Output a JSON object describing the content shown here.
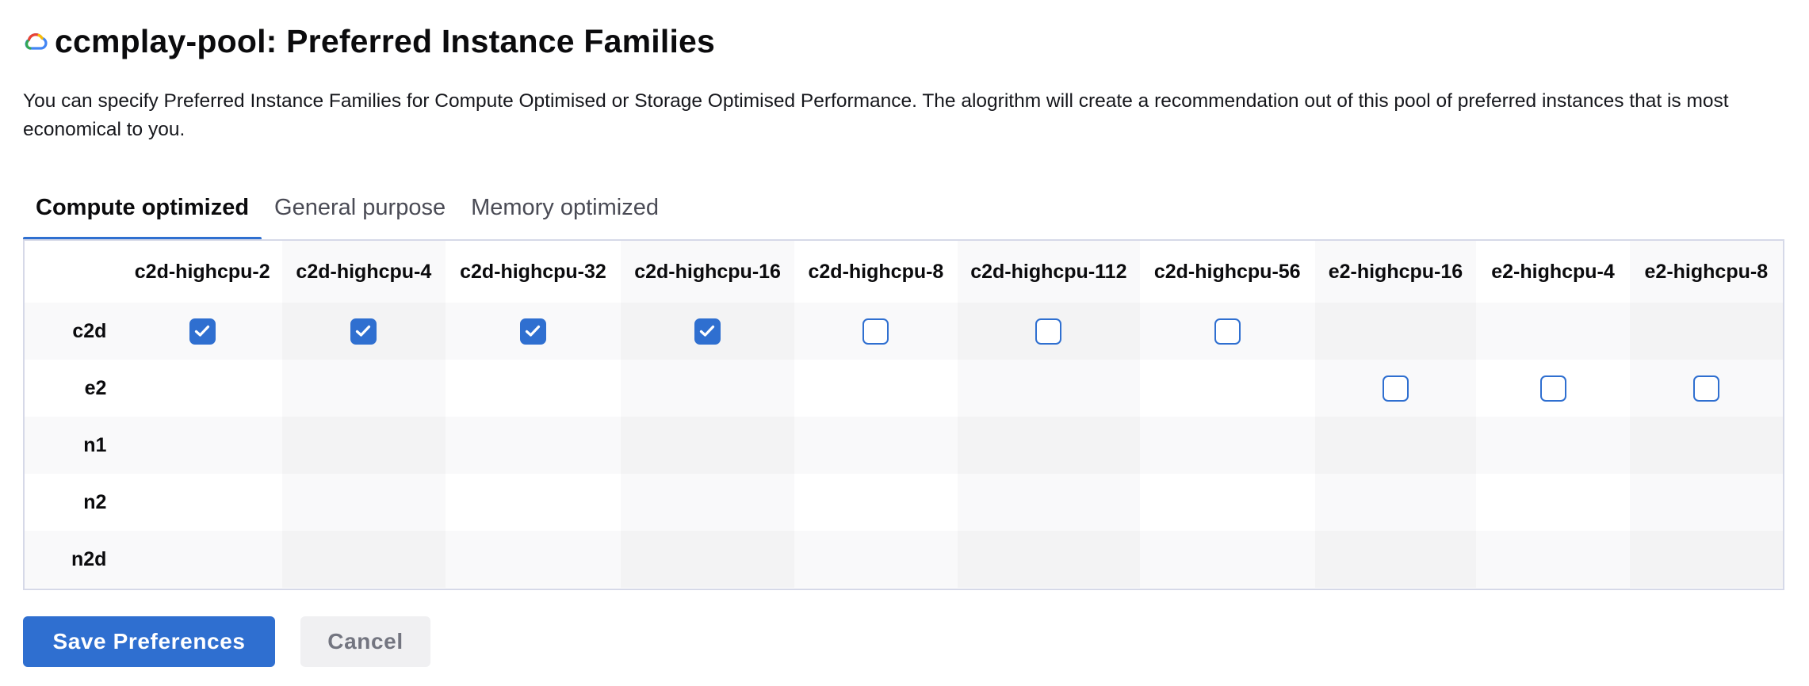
{
  "header": {
    "title": "ccmplay-pool: Preferred Instance Families",
    "logo_icon": "gcp-cloud-icon",
    "logo_colors": [
      "#ea4335",
      "#4285f4",
      "#34a853",
      "#fbbc04"
    ]
  },
  "description": "You can specify Preferred Instance Families for Compute Optimised or Storage Optimised Performance. The alogrithm will create a recommendation out of this pool of preferred instances that is most economical to you.",
  "tabs": [
    {
      "label": "Compute optimized",
      "active": true
    },
    {
      "label": "General purpose",
      "active": false
    },
    {
      "label": "Memory optimized",
      "active": false
    }
  ],
  "grid": {
    "columns": [
      "c2d-highcpu-2",
      "c2d-highcpu-4",
      "c2d-highcpu-32",
      "c2d-highcpu-16",
      "c2d-highcpu-8",
      "c2d-highcpu-112",
      "c2d-highcpu-56",
      "e2-highcpu-16",
      "e2-highcpu-4",
      "e2-highcpu-8"
    ],
    "rows": [
      {
        "family": "c2d",
        "cells": [
          "checked",
          "checked",
          "checked",
          "checked",
          "unchecked",
          "unchecked",
          "unchecked",
          "",
          "",
          ""
        ]
      },
      {
        "family": "e2",
        "cells": [
          "",
          "",
          "",
          "",
          "",
          "",
          "",
          "unchecked",
          "unchecked",
          "unchecked"
        ]
      },
      {
        "family": "n1",
        "cells": [
          "",
          "",
          "",
          "",
          "",
          "",
          "",
          "",
          "",
          ""
        ]
      },
      {
        "family": "n2",
        "cells": [
          "",
          "",
          "",
          "",
          "",
          "",
          "",
          "",
          "",
          ""
        ]
      },
      {
        "family": "n2d",
        "cells": [
          "",
          "",
          "",
          "",
          "",
          "",
          "",
          "",
          "",
          ""
        ]
      }
    ]
  },
  "actions": {
    "save_label": "Save Preferences",
    "cancel_label": "Cancel"
  },
  "colors": {
    "accent": "#2f6fd0",
    "border": "#d6d9e8"
  }
}
